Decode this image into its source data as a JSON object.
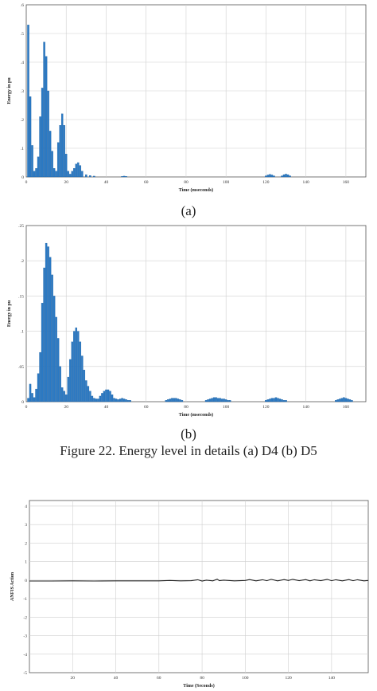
{
  "captions": {
    "a": "(a)",
    "b": "(b)",
    "figure22": "Figure 22. Energy level in details (a) D4 (b) D5"
  },
  "colors": {
    "bar": "#2a79c4",
    "line": "#222222",
    "grid": "#cfcfcf"
  },
  "chart_data": [
    {
      "id": "a",
      "type": "bar",
      "xlabel": "Time (mseconds)",
      "ylabel": "Energy in pu",
      "xlim": [
        0,
        170
      ],
      "ylim": [
        0,
        0.6
      ],
      "xticks": [
        0,
        20,
        40,
        60,
        80,
        100,
        120,
        140,
        160
      ],
      "yticks": [
        0,
        0.1,
        0.2,
        0.3,
        0.4,
        0.5,
        0.6
      ],
      "grid": true,
      "x": [
        1,
        2,
        3,
        4,
        5,
        6,
        7,
        8,
        9,
        10,
        11,
        12,
        13,
        14,
        15,
        16,
        17,
        18,
        19,
        20,
        21,
        22,
        23,
        24,
        25,
        26,
        27,
        28,
        30,
        32,
        34,
        48,
        49,
        50,
        120,
        121,
        122,
        123,
        124,
        128,
        129,
        130,
        131,
        132
      ],
      "values": [
        0.53,
        0.28,
        0.11,
        0.02,
        0.03,
        0.07,
        0.21,
        0.31,
        0.47,
        0.42,
        0.3,
        0.16,
        0.09,
        0.03,
        0.02,
        0.12,
        0.18,
        0.22,
        0.18,
        0.08,
        0.02,
        0.01,
        0.02,
        0.03,
        0.045,
        0.05,
        0.04,
        0.02,
        0.008,
        0.005,
        0.003,
        0.002,
        0.003,
        0.002,
        0.004,
        0.007,
        0.009,
        0.007,
        0.004,
        0.004,
        0.008,
        0.01,
        0.008,
        0.004
      ]
    },
    {
      "id": "b",
      "type": "bar",
      "xlabel": "Time (mseconds)",
      "ylabel": "Energy in pu",
      "xlim": [
        0,
        170
      ],
      "ylim": [
        0,
        0.25
      ],
      "xticks": [
        0,
        20,
        40,
        60,
        80,
        100,
        120,
        140,
        160
      ],
      "yticks": [
        0,
        0.05,
        0.1,
        0.15,
        0.2,
        0.25
      ],
      "grid": true,
      "x": [
        1,
        2,
        3,
        4,
        5,
        6,
        7,
        8,
        9,
        10,
        11,
        12,
        13,
        14,
        15,
        16,
        17,
        18,
        19,
        20,
        21,
        22,
        23,
        24,
        25,
        26,
        27,
        28,
        29,
        30,
        31,
        32,
        33,
        34,
        35,
        36,
        37,
        38,
        39,
        40,
        41,
        42,
        43,
        44,
        45,
        46,
        47,
        48,
        49,
        50,
        51,
        52,
        70,
        71,
        72,
        73,
        74,
        75,
        76,
        77,
        78,
        90,
        91,
        92,
        93,
        94,
        95,
        96,
        97,
        98,
        99,
        100,
        101,
        102,
        120,
        121,
        122,
        123,
        124,
        125,
        126,
        127,
        128,
        129,
        130,
        155,
        156,
        157,
        158,
        159,
        160,
        161,
        162,
        163
      ],
      "values": [
        0.005,
        0.025,
        0.012,
        0.006,
        0.018,
        0.04,
        0.07,
        0.14,
        0.19,
        0.225,
        0.22,
        0.205,
        0.18,
        0.15,
        0.12,
        0.09,
        0.05,
        0.02,
        0.015,
        0.01,
        0.035,
        0.06,
        0.085,
        0.1,
        0.105,
        0.1,
        0.085,
        0.065,
        0.045,
        0.03,
        0.022,
        0.015,
        0.008,
        0.005,
        0.004,
        0.004,
        0.008,
        0.012,
        0.015,
        0.017,
        0.017,
        0.015,
        0.01,
        0.005,
        0.004,
        0.003,
        0.004,
        0.005,
        0.004,
        0.003,
        0.002,
        0.002,
        0.002,
        0.003,
        0.004,
        0.005,
        0.005,
        0.005,
        0.004,
        0.003,
        0.002,
        0.002,
        0.003,
        0.004,
        0.005,
        0.006,
        0.006,
        0.005,
        0.005,
        0.004,
        0.004,
        0.003,
        0.002,
        0.002,
        0.002,
        0.003,
        0.004,
        0.005,
        0.005,
        0.006,
        0.005,
        0.004,
        0.003,
        0.002,
        0.002,
        0.002,
        0.003,
        0.004,
        0.005,
        0.006,
        0.005,
        0.004,
        0.003,
        0.002
      ]
    },
    {
      "id": "c",
      "type": "line",
      "xlabel": "Time (Seconds)",
      "ylabel": "ANFIS Action",
      "xlim": [
        0,
        157
      ],
      "ylim": [
        -5,
        4.3
      ],
      "xticks": [
        20,
        40,
        60,
        80,
        100,
        120,
        140
      ],
      "yticks": [
        -5,
        -4,
        -3,
        -2,
        -1,
        0,
        1,
        2,
        3,
        4
      ],
      "grid": true,
      "x": [
        0,
        10,
        20,
        30,
        40,
        50,
        60,
        65,
        70,
        75,
        78,
        80,
        82,
        85,
        87,
        88,
        90,
        95,
        100,
        102,
        105,
        108,
        110,
        112,
        115,
        118,
        120,
        122,
        125,
        128,
        130,
        132,
        135,
        138,
        140,
        142,
        145,
        148,
        150,
        152,
        155,
        157
      ],
      "values": [
        -0.05,
        -0.05,
        -0.04,
        -0.05,
        -0.04,
        -0.04,
        -0.04,
        -0.02,
        -0.04,
        -0.03,
        0.02,
        -0.05,
        0.0,
        -0.04,
        0.05,
        -0.03,
        0.0,
        -0.04,
        -0.02,
        0.03,
        -0.04,
        0.02,
        -0.03,
        0.04,
        -0.04,
        0.03,
        -0.02,
        0.04,
        -0.03,
        0.03,
        -0.04,
        0.02,
        -0.03,
        0.04,
        -0.03,
        0.02,
        -0.04,
        0.03,
        -0.03,
        0.02,
        -0.04,
        -0.02
      ]
    }
  ]
}
